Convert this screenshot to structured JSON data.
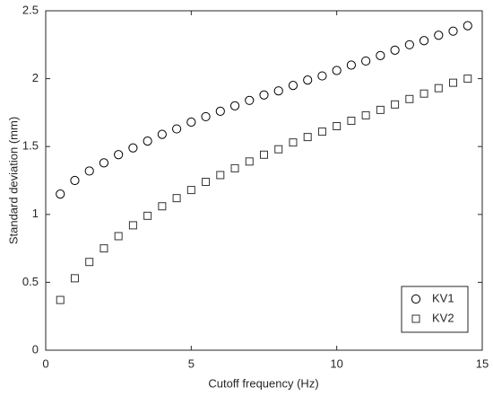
{
  "chart_data": {
    "type": "scatter",
    "x_label": "Cutoff frequency (Hz)",
    "y_label": "Standard deviation (mm)",
    "x": [
      0.5,
      1,
      1.5,
      2,
      2.5,
      3,
      3.5,
      4,
      4.5,
      5,
      5.5,
      6,
      6.5,
      7,
      7.5,
      8,
      8.5,
      9,
      9.5,
      10,
      10.5,
      11,
      11.5,
      12,
      12.5,
      13,
      13.5,
      14,
      14.5
    ],
    "series": [
      {
        "name": "KV1",
        "color": "#000000",
        "marker": "circle",
        "values": [
          1.15,
          1.25,
          1.32,
          1.38,
          1.44,
          1.49,
          1.54,
          1.59,
          1.63,
          1.68,
          1.72,
          1.76,
          1.8,
          1.84,
          1.88,
          1.91,
          1.95,
          1.99,
          2.02,
          2.06,
          2.1,
          2.13,
          2.17,
          2.21,
          2.25,
          2.28,
          2.32,
          2.35,
          2.39
        ]
      },
      {
        "name": "KV2",
        "color": "#333333",
        "marker": "square",
        "values": [
          0.37,
          0.53,
          0.65,
          0.75,
          0.84,
          0.92,
          0.99,
          1.06,
          1.12,
          1.18,
          1.24,
          1.29,
          1.34,
          1.39,
          1.44,
          1.48,
          1.53,
          1.57,
          1.61,
          1.65,
          1.69,
          1.73,
          1.77,
          1.81,
          1.85,
          1.89,
          1.93,
          1.97,
          2.0
        ]
      }
    ],
    "xlim": [
      0,
      15
    ],
    "xticks": [
      0,
      5,
      10,
      15
    ],
    "ylim": [
      0,
      2.5
    ],
    "yticks": [
      0,
      0.5,
      1,
      1.5,
      2,
      2.5
    ],
    "grid": false,
    "legend": "lower right"
  }
}
